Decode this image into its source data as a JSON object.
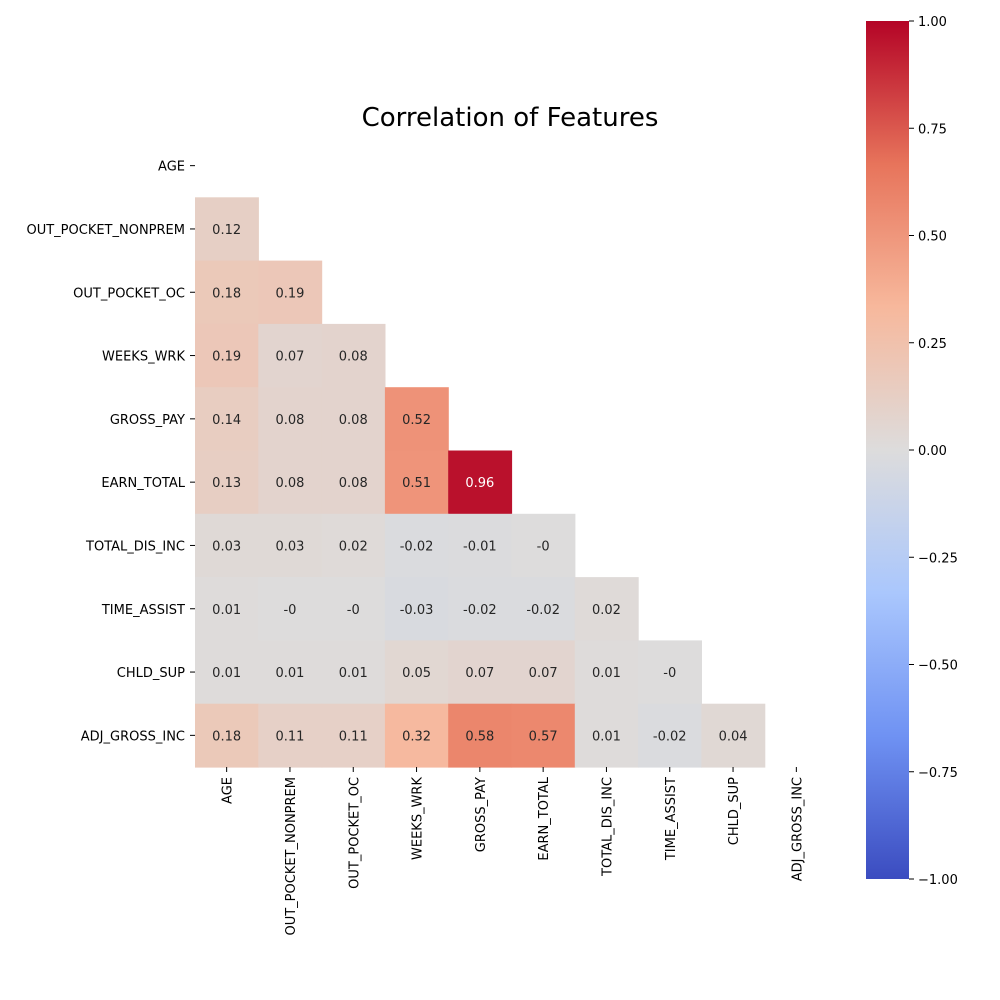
{
  "chart_data": {
    "type": "heatmap",
    "title": "Correlation of Features",
    "xlabel": "",
    "ylabel": "",
    "labels": [
      "AGE",
      "OUT_POCKET_NONPREM",
      "OUT_POCKET_OC",
      "WEEKS_WRK",
      "GROSS_PAY",
      "EARN_TOTAL",
      "TOTAL_DIS_INC",
      "TIME_ASSIST",
      "CHLD_SUP",
      "ADJ_GROSS_INC"
    ],
    "mask": "upper-triangle-including-diagonal",
    "values": [
      [
        null,
        null,
        null,
        null,
        null,
        null,
        null,
        null,
        null,
        null
      ],
      [
        0.12,
        null,
        null,
        null,
        null,
        null,
        null,
        null,
        null,
        null
      ],
      [
        0.18,
        0.19,
        null,
        null,
        null,
        null,
        null,
        null,
        null,
        null
      ],
      [
        0.19,
        0.07,
        0.08,
        null,
        null,
        null,
        null,
        null,
        null,
        null
      ],
      [
        0.14,
        0.08,
        0.08,
        0.52,
        null,
        null,
        null,
        null,
        null,
        null
      ],
      [
        0.13,
        0.08,
        0.08,
        0.51,
        0.96,
        null,
        null,
        null,
        null,
        null
      ],
      [
        0.03,
        0.03,
        0.02,
        -0.02,
        -0.01,
        0,
        null,
        null,
        null,
        null
      ],
      [
        0.01,
        0,
        0,
        -0.03,
        -0.02,
        -0.02,
        0.02,
        null,
        null,
        null
      ],
      [
        0.01,
        0.01,
        0.01,
        0.05,
        0.07,
        0.07,
        0.01,
        0,
        null,
        null
      ],
      [
        0.18,
        0.11,
        0.11,
        0.32,
        0.58,
        0.57,
        0.01,
        -0.02,
        0.04,
        null
      ]
    ],
    "display_labels": [
      [
        null,
        null,
        null,
        null,
        null,
        null,
        null,
        null,
        null,
        null
      ],
      [
        "0.12",
        null,
        null,
        null,
        null,
        null,
        null,
        null,
        null,
        null
      ],
      [
        "0.18",
        "0.19",
        null,
        null,
        null,
        null,
        null,
        null,
        null,
        null
      ],
      [
        "0.19",
        "0.07",
        "0.08",
        null,
        null,
        null,
        null,
        null,
        null,
        null
      ],
      [
        "0.14",
        "0.08",
        "0.08",
        "0.52",
        null,
        null,
        null,
        null,
        null,
        null
      ],
      [
        "0.13",
        "0.08",
        "0.08",
        "0.51",
        "0.96",
        null,
        null,
        null,
        null,
        null
      ],
      [
        "0.03",
        "0.03",
        "0.02",
        "-0.02",
        "-0.01",
        "-0",
        null,
        null,
        null,
        null
      ],
      [
        "0.01",
        "-0",
        "-0",
        "-0.03",
        "-0.02",
        "-0.02",
        "0.02",
        null,
        null,
        null
      ],
      [
        "0.01",
        "0.01",
        "0.01",
        "0.05",
        "0.07",
        "0.07",
        "0.01",
        "-0",
        null,
        null
      ],
      [
        "0.18",
        "0.11",
        "0.11",
        "0.32",
        "0.58",
        "0.57",
        "0.01",
        "-0.02",
        "0.04",
        null
      ]
    ],
    "colormap": "coolwarm",
    "colormap_stops": [
      "#3b4cc0",
      "#6f92f3",
      "#aac7fd",
      "#dddcdc",
      "#f7b89c",
      "#e7745b",
      "#b40426"
    ],
    "vmin": -1,
    "vmax": 1,
    "colorbar_ticks": [
      "1.00",
      "0.75",
      "0.50",
      "0.25",
      "0.00",
      "−0.25",
      "−0.50",
      "−0.75",
      "−1.00"
    ],
    "grid": false,
    "legend": "colorbar-right"
  }
}
